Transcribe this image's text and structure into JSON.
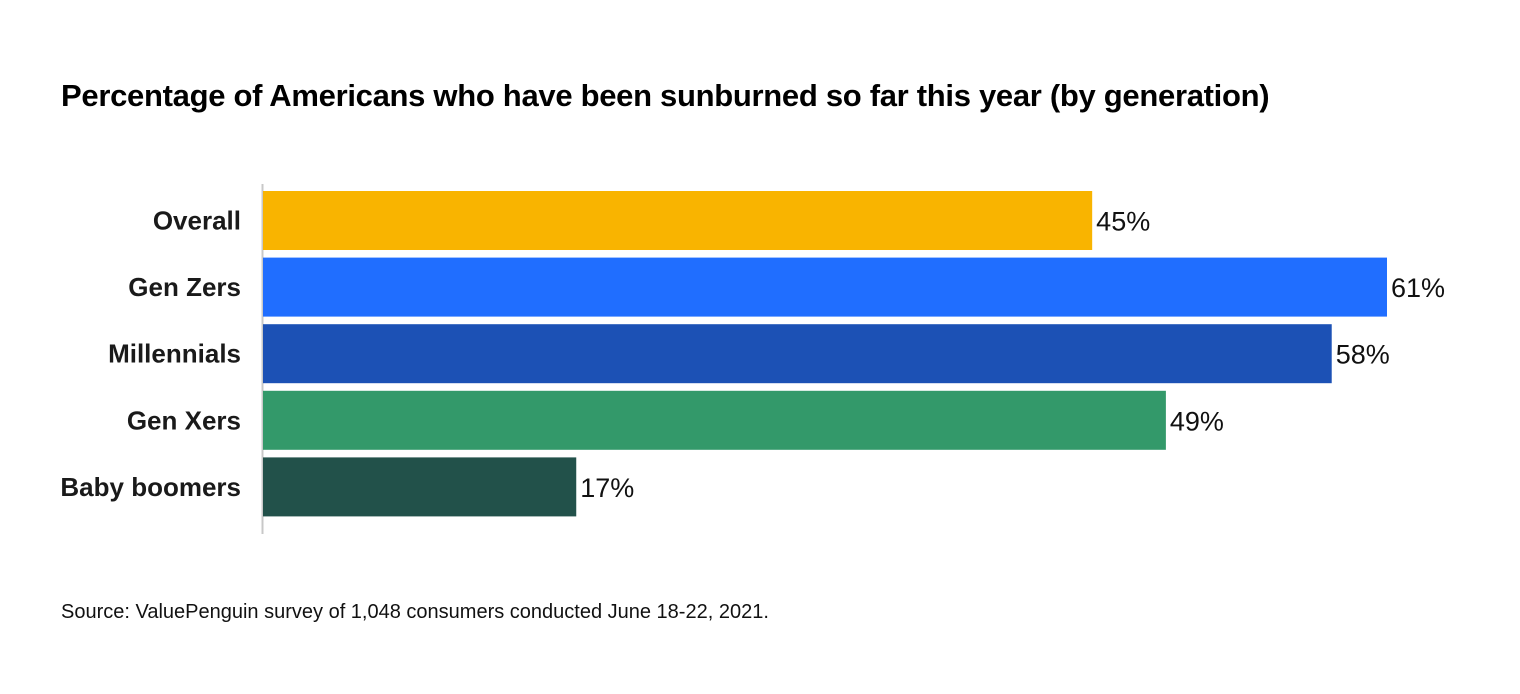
{
  "chart_data": {
    "type": "bar",
    "orientation": "horizontal",
    "title": "Percentage of Americans who have been sunburned so far this year (by generation)",
    "categories": [
      "Overall",
      "Gen Zers",
      "Millennials",
      "Gen Xers",
      "Baby boomers"
    ],
    "values": [
      45,
      61,
      58,
      49,
      17
    ],
    "value_labels": [
      "45%",
      "61%",
      "58%",
      "49%",
      "17%"
    ],
    "colors": [
      "#F9B400",
      "#206EFF",
      "#1C51B5",
      "#33996A",
      "#22514A"
    ],
    "xlim": [
      0,
      61
    ],
    "grid": false,
    "legend": "none",
    "source": "Source: ValuePenguin survey of 1,048 consumers conducted June 18-22, 2021."
  }
}
